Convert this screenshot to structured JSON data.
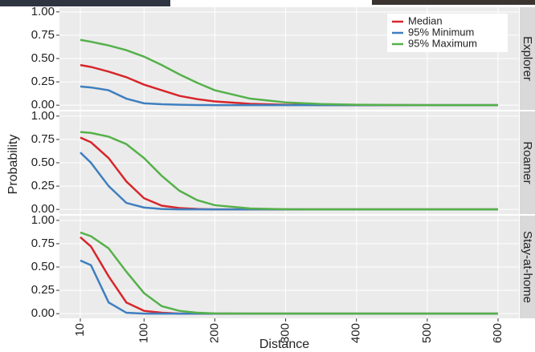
{
  "chart_data": {
    "type": "line",
    "x_label": "Distance",
    "y_label": "Probability",
    "x": [
      10,
      25,
      50,
      75,
      100,
      125,
      150,
      175,
      200,
      250,
      300,
      350,
      400,
      500,
      600
    ],
    "xlim": [
      -19.5,
      629.5
    ],
    "xticks": [
      10,
      100,
      200,
      300,
      400,
      500,
      600
    ],
    "ylim": [
      -0.05,
      1.05
    ],
    "yticks": [
      {
        "value": 0,
        "label": "0.00"
      },
      {
        "value": 0.25,
        "label": "0.25"
      },
      {
        "value": 0.5,
        "label": "0.50"
      },
      {
        "value": 0.75,
        "label": "0.75"
      },
      {
        "value": 1,
        "label": "1.00"
      }
    ],
    "grid": true,
    "legend_position": "top-right",
    "facets": [
      {
        "label": "Explorer",
        "series": [
          {
            "name": "Median",
            "color": "#d7262b",
            "values": [
              0.43,
              0.41,
              0.36,
              0.3,
              0.22,
              0.16,
              0.1,
              0.065,
              0.04,
              0.015,
              0.005,
              0.002,
              0,
              0,
              0
            ]
          },
          {
            "name": "95% Minimum",
            "color": "#3f7fbf",
            "values": [
              0.2,
              0.19,
              0.16,
              0.07,
              0.02,
              0.01,
              0.005,
              0.002,
              0,
              0,
              0,
              0,
              0,
              0,
              0
            ]
          },
          {
            "name": "95% Maximum",
            "color": "#55b14a",
            "values": [
              0.7,
              0.68,
              0.64,
              0.59,
              0.52,
              0.43,
              0.33,
              0.24,
              0.16,
              0.07,
              0.03,
              0.012,
              0.005,
              0,
              0
            ]
          }
        ]
      },
      {
        "label": "Roamer",
        "series": [
          {
            "name": "Median",
            "color": "#d7262b",
            "values": [
              0.77,
              0.72,
              0.55,
              0.3,
              0.12,
              0.04,
              0.015,
              0.005,
              0,
              0,
              0,
              0,
              0,
              0,
              0
            ]
          },
          {
            "name": "95% Minimum",
            "color": "#3f7fbf",
            "values": [
              0.61,
              0.5,
              0.25,
              0.07,
              0.02,
              0.005,
              0,
              0,
              0,
              0,
              0,
              0,
              0,
              0,
              0
            ]
          },
          {
            "name": "95% Maximum",
            "color": "#55b14a",
            "values": [
              0.83,
              0.82,
              0.78,
              0.7,
              0.55,
              0.36,
              0.2,
              0.1,
              0.045,
              0.01,
              0.002,
              0,
              0,
              0,
              0
            ]
          }
        ]
      },
      {
        "label": "Stay-at-home",
        "series": [
          {
            "name": "Median",
            "color": "#d7262b",
            "values": [
              0.82,
              0.72,
              0.4,
              0.12,
              0.03,
              0.01,
              0,
              0,
              0,
              0,
              0,
              0,
              0,
              0,
              0
            ]
          },
          {
            "name": "95% Minimum",
            "color": "#3f7fbf",
            "values": [
              0.57,
              0.52,
              0.12,
              0.01,
              0,
              0,
              0,
              0,
              0,
              0,
              0,
              0,
              0,
              0,
              0
            ]
          },
          {
            "name": "95% Maximum",
            "color": "#55b14a",
            "values": [
              0.87,
              0.83,
              0.7,
              0.45,
              0.22,
              0.08,
              0.03,
              0.01,
              0.003,
              0,
              0,
              0,
              0,
              0,
              0
            ]
          }
        ]
      }
    ]
  }
}
